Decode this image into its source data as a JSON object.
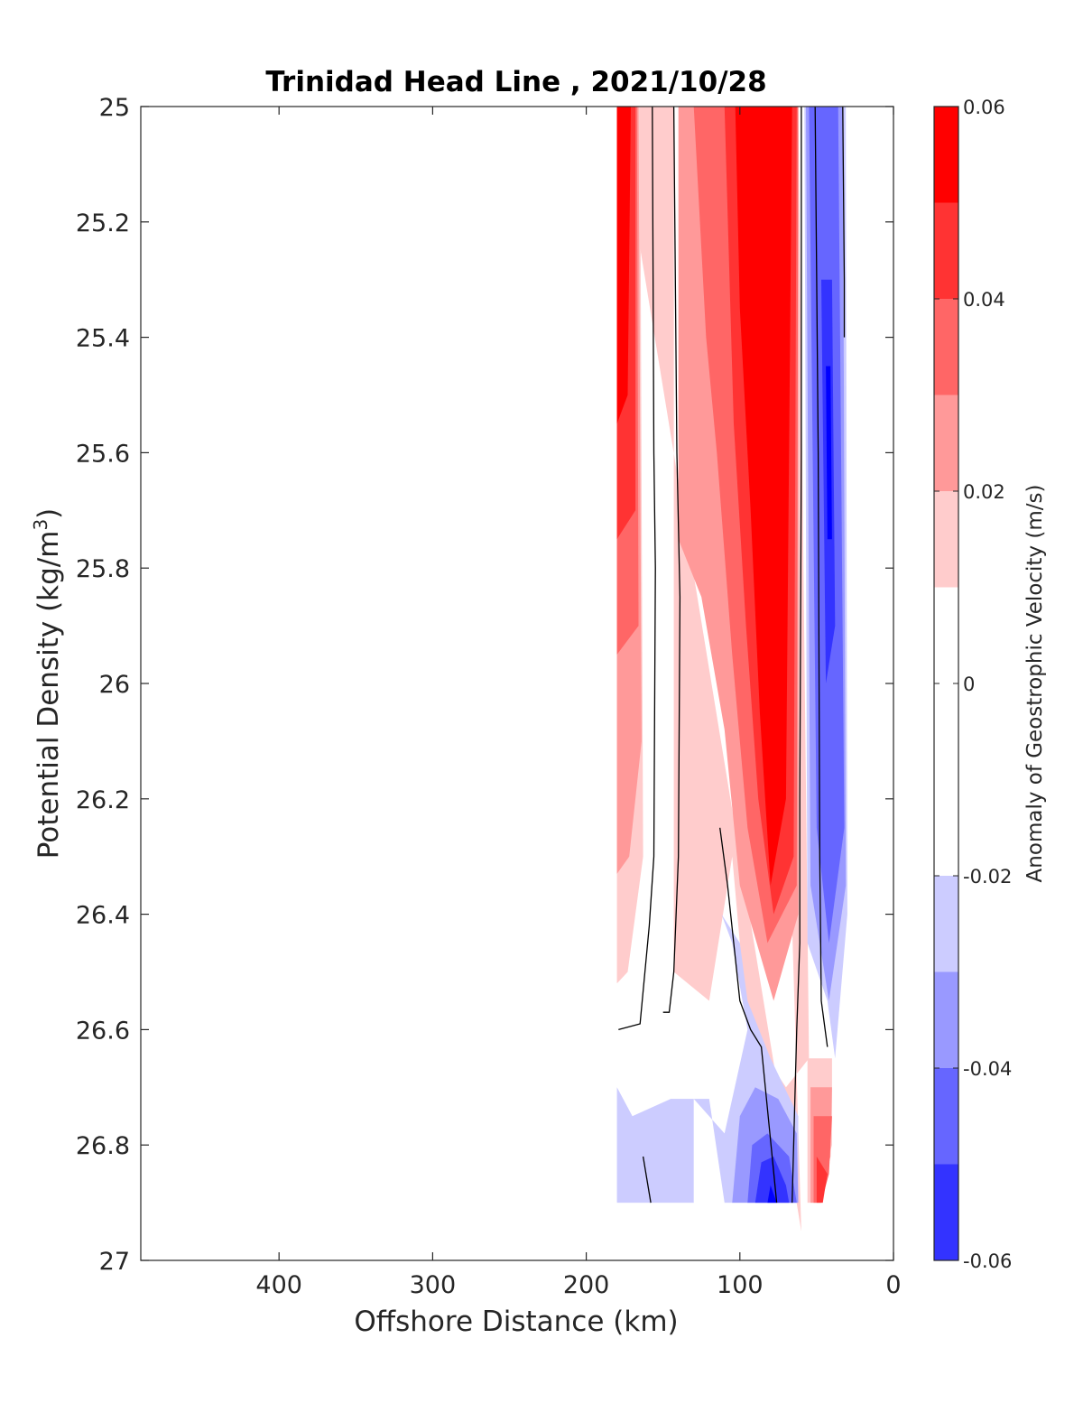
{
  "chart_data": {
    "type": "filled-contour",
    "title": "Trinidad Head Line , 2021/10/28",
    "xlabel": "Offshore Distance (km)",
    "ylabel": "Potential Density (kg/m3)",
    "ylabel_main": "Potential Density (kg/m",
    "ylabel_sup": "3",
    "ylabel_close": ")",
    "xlim": [
      490,
      0
    ],
    "ylim": [
      27,
      25
    ],
    "x_reversed": true,
    "y_reversed": true,
    "xticks": [
      400,
      300,
      200,
      100,
      0
    ],
    "xtick_labels": [
      "400",
      "300",
      "200",
      "100",
      "0"
    ],
    "yticks": [
      25,
      25.2,
      25.4,
      25.6,
      25.8,
      26,
      26.2,
      26.4,
      26.6,
      26.8,
      27
    ],
    "ytick_labels": [
      "25",
      "25.2",
      "25.4",
      "25.6",
      "25.8",
      "26",
      "26.2",
      "26.4",
      "26.6",
      "26.8",
      "27"
    ],
    "data_extent": {
      "x": [
        180,
        30
      ],
      "y": [
        25,
        26.9
      ]
    },
    "colorbar": {
      "label": "Anomaly of Geostrophic Velocity (m/s)",
      "limits": [
        -0.06,
        0.06
      ],
      "levels": [
        -0.06,
        -0.05,
        -0.04,
        -0.03,
        -0.02,
        -0.01,
        0.01,
        0.02,
        0.03,
        0.04,
        0.05,
        0.06
      ],
      "tick_values": [
        0.06,
        0.04,
        0.02,
        0,
        -0.02,
        -0.04,
        -0.06
      ],
      "tick_labels": [
        "0.06",
        "0.04",
        "0.02",
        "0",
        "-0.02",
        "-0.04",
        "-0.06"
      ],
      "colors_top_to_bottom": [
        "#ff0000",
        "#ff3333",
        "#ff6666",
        "#ff9999",
        "#ffcccc",
        "#ffffff",
        "#ffffff",
        "#ccccff",
        "#9999ff",
        "#6666ff",
        "#3333ff",
        "#0000ff"
      ]
    },
    "regions": [
      {
        "name": "band 0.01-0.02",
        "color": "#ffcccc",
        "points": [
          [
            180,
            25
          ],
          [
            143,
            25
          ],
          [
            143,
            26.5
          ],
          [
            120,
            26.55
          ],
          [
            105,
            26.3
          ],
          [
            95,
            26.6
          ],
          [
            70,
            26.7
          ],
          [
            55,
            26.65
          ],
          [
            62,
            25
          ],
          [
            82,
            25
          ],
          [
            60,
            26.95
          ]
        ]
      },
      {
        "name": "outer shelf 0.01-0.02",
        "color": "#ffcccc",
        "points": [
          [
            180,
            25
          ],
          [
            165,
            25
          ],
          [
            163,
            26.3
          ],
          [
            173,
            26.5
          ],
          [
            180,
            26.52
          ]
        ]
      },
      {
        "name": "outer band 0.02-0.03",
        "color": "#ff9999",
        "points": [
          [
            180,
            25
          ],
          [
            166,
            25
          ],
          [
            164,
            26.1
          ],
          [
            172,
            26.3
          ],
          [
            180,
            26.33
          ]
        ]
      },
      {
        "name": "outer band 0.03-0.04",
        "color": "#ff6666",
        "points": [
          [
            180,
            25
          ],
          [
            167,
            25
          ],
          [
            166,
            25.9
          ],
          [
            180,
            25.95
          ]
        ]
      },
      {
        "name": "outer band 0.04-0.05",
        "color": "#ff3333",
        "points": [
          [
            180,
            25
          ],
          [
            168,
            25
          ],
          [
            168,
            25.7
          ],
          [
            180,
            25.75
          ]
        ]
      },
      {
        "name": "outer core 0.05-0.06",
        "color": "#ff0000",
        "points": [
          [
            180,
            25
          ],
          [
            171,
            25
          ],
          [
            173,
            25.5
          ],
          [
            180,
            25.55
          ]
        ]
      },
      {
        "name": "core 0.02-0.03",
        "color": "#ff9999",
        "points": [
          [
            140,
            25
          ],
          [
            62,
            25
          ],
          [
            62,
            26.4
          ],
          [
            78,
            26.55
          ],
          [
            100,
            26.35
          ],
          [
            110,
            26.08
          ],
          [
            125,
            25.85
          ],
          [
            140,
            25.75
          ]
        ]
      },
      {
        "name": "core 0.03-0.04",
        "color": "#ff6666",
        "points": [
          [
            130,
            25
          ],
          [
            62,
            25
          ],
          [
            63,
            26.35
          ],
          [
            82,
            26.45
          ],
          [
            95,
            26.25
          ],
          [
            105,
            25.95
          ],
          [
            115,
            25.6
          ],
          [
            122,
            25.4
          ]
        ]
      },
      {
        "name": "core 0.04-0.05",
        "color": "#ff3333",
        "points": [
          [
            110,
            25
          ],
          [
            63,
            25
          ],
          [
            65,
            26.3
          ],
          [
            78,
            26.4
          ],
          [
            88,
            26.2
          ],
          [
            96,
            25.9
          ],
          [
            104,
            25.55
          ]
        ]
      },
      {
        "name": "core 0.05-0.06",
        "color": "#ff0000",
        "points": [
          [
            103,
            25
          ],
          [
            66,
            25
          ],
          [
            70,
            26.2
          ],
          [
            80,
            26.35
          ],
          [
            87,
            26.05
          ],
          [
            93,
            25.7
          ],
          [
            100,
            25.35
          ]
        ]
      },
      {
        "name": "neg band -0.01 to -0.02",
        "color": "#ccccff",
        "points": [
          [
            58,
            25
          ],
          [
            31,
            25
          ],
          [
            30,
            26.4
          ],
          [
            38,
            26.65
          ],
          [
            43,
            26.55
          ],
          [
            56,
            26.45
          ]
        ]
      },
      {
        "name": "neg band -0.02 to -0.03",
        "color": "#9999ff",
        "points": [
          [
            57,
            25
          ],
          [
            33,
            25
          ],
          [
            31,
            26.35
          ],
          [
            42,
            26.55
          ],
          [
            54,
            26.35
          ]
        ]
      },
      {
        "name": "neg band -0.03 to -0.04",
        "color": "#6666ff",
        "points": [
          [
            55,
            25
          ],
          [
            36,
            25
          ],
          [
            32,
            26.25
          ],
          [
            42,
            26.45
          ],
          [
            50,
            26.25
          ]
        ]
      },
      {
        "name": "neg band -0.04 to -0.05",
        "color": "#3333ff",
        "points": [
          [
            47,
            25.3
          ],
          [
            40,
            25.3
          ],
          [
            38,
            25.9
          ],
          [
            44,
            26.0
          ]
        ]
      },
      {
        "name": "neg core -0.05 to -0.06",
        "color": "#0000ff",
        "points": [
          [
            44,
            25.45
          ],
          [
            41,
            25.45
          ],
          [
            40,
            25.75
          ],
          [
            43,
            25.75
          ]
        ]
      },
      {
        "name": "deep neg -0.01 to -0.02",
        "color": "#ccccff",
        "points": [
          [
            180,
            26.65
          ],
          [
            180,
            26.9
          ],
          [
            130,
            26.9
          ],
          [
            130,
            26.72
          ],
          [
            110,
            26.78
          ],
          [
            95,
            26.6
          ],
          [
            105,
            26.45
          ],
          [
            112,
            26.4
          ],
          [
            100,
            26.45
          ],
          [
            95,
            26.55
          ],
          [
            80,
            26.65
          ],
          [
            62,
            26.75
          ],
          [
            62,
            26.9
          ],
          [
            110,
            26.9
          ],
          [
            120,
            26.72
          ],
          [
            145,
            26.72
          ],
          [
            170,
            26.75
          ],
          [
            180,
            26.7
          ]
        ]
      },
      {
        "name": "deep neg -0.02 to -0.03",
        "color": "#9999ff",
        "points": [
          [
            105,
            26.9
          ],
          [
            100,
            26.75
          ],
          [
            90,
            26.7
          ],
          [
            75,
            26.72
          ],
          [
            63,
            26.78
          ],
          [
            62,
            26.9
          ]
        ]
      },
      {
        "name": "deep neg -0.03 to -0.04",
        "color": "#6666ff",
        "points": [
          [
            95,
            26.9
          ],
          [
            92,
            26.8
          ],
          [
            82,
            26.78
          ],
          [
            68,
            26.82
          ],
          [
            63,
            26.9
          ]
        ]
      },
      {
        "name": "deep neg -0.04 to -0.05",
        "color": "#3333ff",
        "points": [
          [
            90,
            26.9
          ],
          [
            86,
            26.83
          ],
          [
            78,
            26.82
          ],
          [
            70,
            26.87
          ],
          [
            68,
            26.9
          ]
        ]
      },
      {
        "name": "deep neg core",
        "color": "#0000ff",
        "points": [
          [
            82,
            26.9
          ],
          [
            80,
            26.87
          ],
          [
            76,
            26.9
          ]
        ]
      },
      {
        "name": "coastal pos 0.01-0.02",
        "color": "#ffcccc",
        "points": [
          [
            56,
            26.65
          ],
          [
            40,
            26.65
          ],
          [
            40,
            26.8
          ],
          [
            50,
            26.9
          ],
          [
            56,
            26.9
          ]
        ]
      },
      {
        "name": "coastal pos 0.02-0.03",
        "color": "#ff9999",
        "points": [
          [
            54,
            26.7
          ],
          [
            40,
            26.7
          ],
          [
            41,
            26.82
          ],
          [
            48,
            26.9
          ],
          [
            54,
            26.9
          ]
        ]
      },
      {
        "name": "coastal pos 0.03-0.04",
        "color": "#ff6666",
        "points": [
          [
            52,
            26.75
          ],
          [
            40,
            26.75
          ],
          [
            42,
            26.85
          ],
          [
            47,
            26.9
          ],
          [
            52,
            26.9
          ]
        ]
      },
      {
        "name": "coastal pos 0.04-0.05",
        "color": "#ff3333",
        "points": [
          [
            50,
            26.82
          ],
          [
            43,
            26.85
          ],
          [
            46,
            26.9
          ],
          [
            50,
            26.9
          ]
        ]
      }
    ],
    "zero_contours": [
      [
        [
          157,
          25
        ],
        [
          156,
          25.6
        ],
        [
          155,
          25.8
        ],
        [
          156,
          26.3
        ],
        [
          159,
          26.42
        ],
        [
          165,
          26.59
        ],
        [
          179,
          26.6
        ]
      ],
      [
        [
          143,
          25
        ],
        [
          141,
          25.6
        ],
        [
          139,
          25.85
        ],
        [
          140,
          26.3
        ],
        [
          143,
          26.5
        ],
        [
          146,
          26.57
        ],
        [
          150,
          26.57
        ]
      ],
      [
        [
          60,
          25
        ],
        [
          60,
          25.6
        ],
        [
          61,
          26.2
        ],
        [
          61,
          26.45
        ],
        [
          63,
          26.6
        ],
        [
          66,
          26.9
        ]
      ],
      [
        [
          33,
          25
        ],
        [
          32,
          25.3
        ],
        [
          32,
          25.4
        ]
      ],
      [
        [
          51,
          25
        ],
        [
          49,
          25.6
        ],
        [
          48,
          26.3
        ],
        [
          47,
          26.55
        ],
        [
          43,
          26.63
        ]
      ],
      [
        [
          113,
          26.25
        ],
        [
          108,
          26.35
        ],
        [
          100,
          26.55
        ],
        [
          93,
          26.6
        ],
        [
          86,
          26.63
        ],
        [
          76,
          26.9
        ]
      ],
      [
        [
          163,
          26.82
        ],
        [
          158,
          26.9
        ]
      ]
    ]
  }
}
